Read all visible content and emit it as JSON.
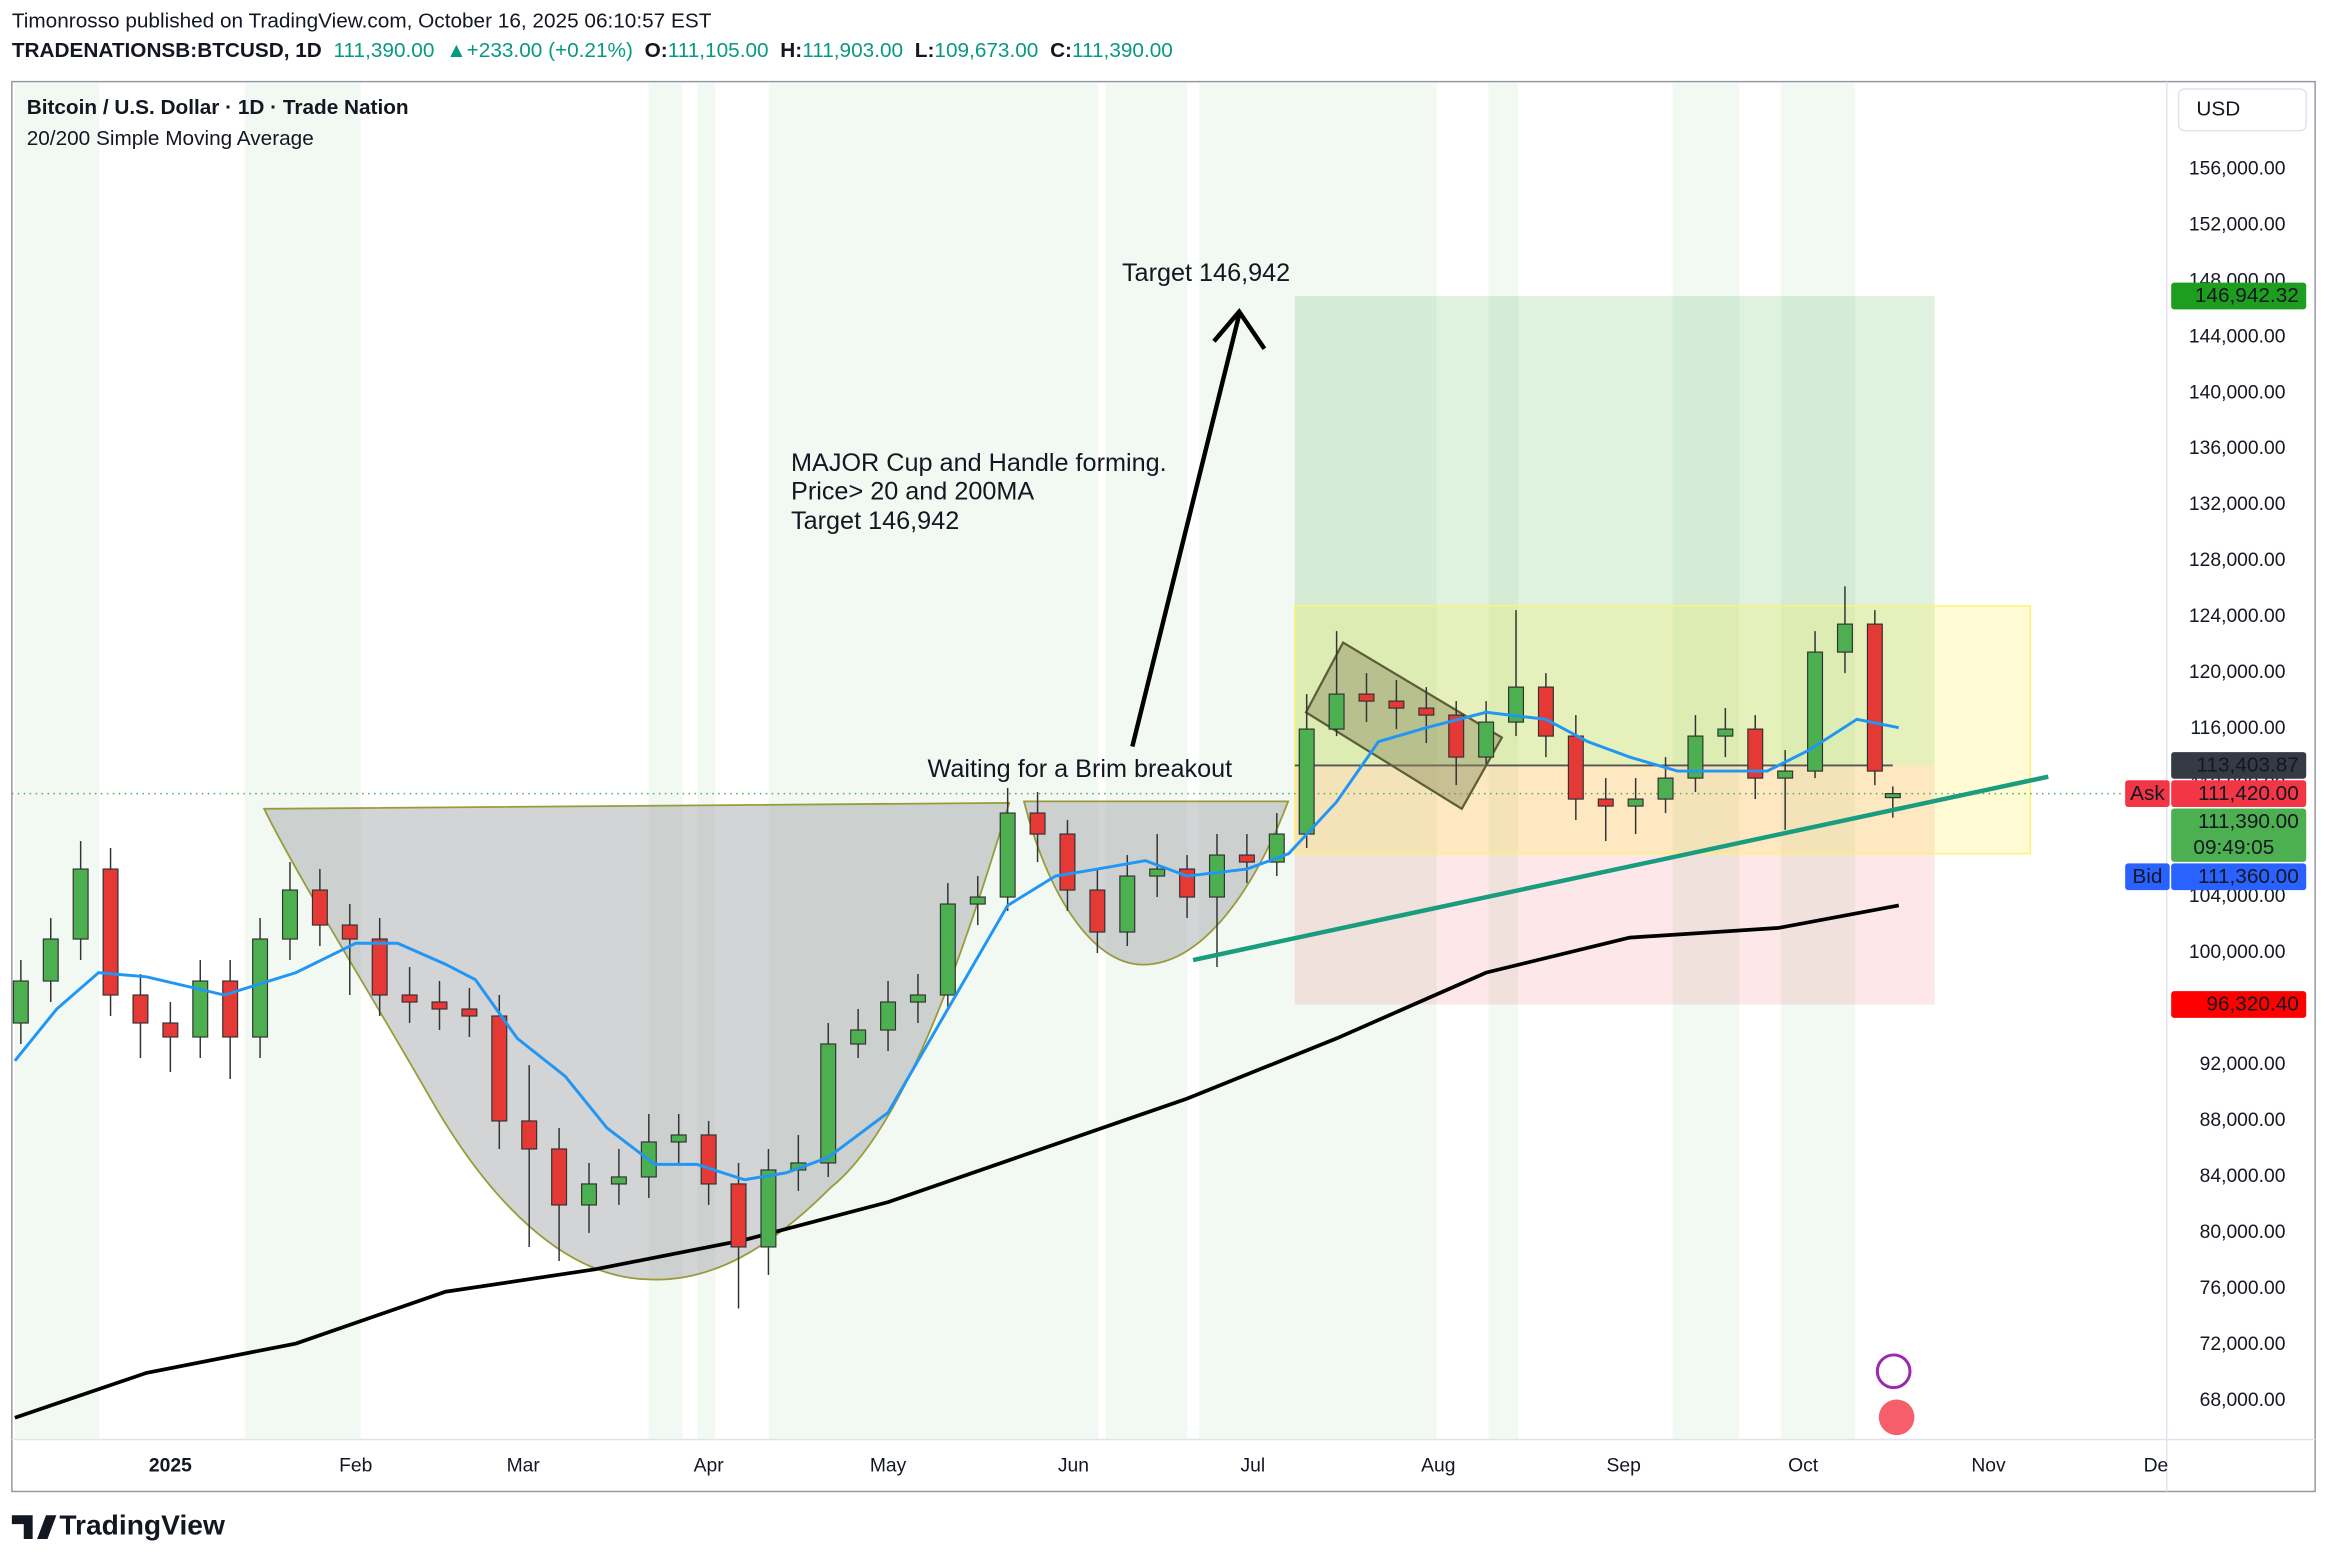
{
  "header": {
    "publisher": "Timonrosso published on TradingView.com, October 16, 2025 06:10:57 EST",
    "symbol": "TRADENATIONSB:BTCUSD, 1D",
    "last": "111,390.00",
    "change": "▲+233.00 (+0.21%)",
    "ohlc": [
      {
        "key": "O:",
        "value": "111,105.00"
      },
      {
        "key": "H:",
        "value": "111,903.00"
      },
      {
        "key": "L:",
        "value": "109,673.00"
      },
      {
        "key": "C:",
        "value": "111,390.00"
      }
    ]
  },
  "footer": {
    "brand": "TradingView"
  },
  "chart_data": {
    "type": "candlestick",
    "title": "Bitcoin / U.S. Dollar · 1D · Trade Nation",
    "subtitle": "20/200 Simple Moving Average",
    "currency": "USD",
    "up_color": "#4caf50",
    "down_color": "#e53935",
    "x": [
      -25,
      -20,
      -15,
      -10,
      -5,
      0,
      5,
      10,
      15,
      20,
      25,
      30,
      35,
      40,
      45,
      50,
      55,
      60,
      65,
      70,
      75,
      80,
      85,
      90,
      95,
      100,
      105,
      110,
      115,
      120,
      125,
      130,
      135,
      140,
      145,
      150,
      155,
      160,
      165,
      170,
      175,
      180,
      185,
      190,
      195,
      200,
      205,
      210,
      215,
      220,
      225,
      230,
      235,
      240,
      245,
      250,
      255,
      260,
      265,
      270,
      275,
      280,
      285,
      288
    ],
    "open": [
      95000,
      98000,
      101000,
      106000,
      97000,
      95000,
      94000,
      98000,
      94000,
      101000,
      104500,
      102000,
      101000,
      97000,
      96500,
      96000,
      95500,
      88000,
      86000,
      82000,
      83500,
      84000,
      86500,
      87000,
      83500,
      79000,
      84500,
      85000,
      93500,
      94500,
      96500,
      97000,
      103500,
      104000,
      110000,
      108500,
      104500,
      101500,
      105500,
      106000,
      104000,
      107000,
      106500,
      108500,
      116000,
      118500,
      118000,
      117500,
      117000,
      114000,
      116500,
      119000,
      115500,
      111000,
      110500,
      111000,
      112500,
      115500,
      116000,
      112500,
      113000,
      121500,
      123500,
      111105
    ],
    "high": [
      99500,
      102500,
      108000,
      107500,
      98500,
      96500,
      99500,
      99500,
      102500,
      106500,
      106000,
      103500,
      102500,
      99000,
      98000,
      97500,
      97000,
      92000,
      87500,
      85000,
      86000,
      88500,
      88500,
      88000,
      85000,
      86000,
      87000,
      95000,
      96000,
      98000,
      98500,
      105000,
      105500,
      111800,
      111500,
      109500,
      106000,
      107000,
      108500,
      107000,
      108500,
      108500,
      110000,
      118500,
      123000,
      120000,
      119500,
      119000,
      118000,
      118000,
      124500,
      120000,
      117000,
      112500,
      112500,
      114000,
      117000,
      117500,
      117000,
      114500,
      123000,
      126200,
      124500,
      111903
    ],
    "low": [
      93500,
      96500,
      99500,
      95500,
      92500,
      91500,
      92500,
      91000,
      92500,
      99500,
      100500,
      97000,
      95500,
      95000,
      94500,
      94000,
      86000,
      79000,
      78000,
      80000,
      82000,
      82500,
      85000,
      82000,
      74600,
      77000,
      83000,
      84000,
      92500,
      93000,
      95000,
      96000,
      102000,
      103000,
      106500,
      103000,
      100000,
      100500,
      104000,
      102500,
      99000,
      105000,
      105500,
      107500,
      115500,
      116500,
      116000,
      115000,
      112000,
      113500,
      115500,
      114000,
      109500,
      108000,
      108500,
      110000,
      111500,
      114000,
      111000,
      108800,
      112500,
      120000,
      112000,
      109673
    ],
    "close": [
      98000,
      101000,
      106000,
      97000,
      95000,
      94000,
      98000,
      94000,
      101000,
      104500,
      102000,
      101000,
      97000,
      96500,
      96000,
      95500,
      88000,
      86000,
      82000,
      83500,
      84000,
      86500,
      87000,
      83500,
      79000,
      84500,
      85000,
      93500,
      94500,
      96500,
      97000,
      103500,
      104000,
      110000,
      108500,
      104500,
      101500,
      105500,
      106000,
      104000,
      107000,
      106500,
      108500,
      116000,
      118500,
      118000,
      117500,
      117000,
      114000,
      116500,
      119000,
      115500,
      111000,
      110500,
      111000,
      112500,
      115500,
      116000,
      112500,
      113000,
      121500,
      123500,
      113000,
      111390
    ],
    "sma20": {
      "color": "#2196f3",
      "x": [
        -26,
        -19,
        -12,
        -4,
        9,
        21,
        31,
        38,
        46,
        51,
        58,
        66,
        73,
        81,
        88,
        96,
        103,
        110,
        120,
        130,
        140,
        148,
        155,
        163,
        170,
        180,
        187,
        195,
        202,
        210,
        220,
        230,
        237,
        244,
        252,
        267,
        274,
        282,
        289
      ],
      "values": [
        92300,
        96000,
        98600,
        98300,
        97000,
        98600,
        100700,
        100700,
        99200,
        98100,
        93900,
        91200,
        87500,
        84900,
        84900,
        83800,
        84300,
        85400,
        88600,
        96000,
        103400,
        105500,
        106000,
        106600,
        105500,
        106000,
        107100,
        110800,
        115100,
        116100,
        117200,
        116700,
        115100,
        114000,
        113000,
        113000,
        114500,
        116700,
        116100
      ]
    },
    "sma200": {
      "color": "#000000",
      "x": [
        -26,
        -4,
        21,
        46,
        71,
        96,
        120,
        145,
        170,
        195,
        220,
        244,
        269,
        289
      ],
      "values": [
        66800,
        70000,
        72100,
        75800,
        77400,
        79500,
        82200,
        85900,
        89600,
        93900,
        98600,
        101100,
        101800,
        103400
      ]
    },
    "position": {
      "x": [
        188,
        295
      ],
      "target": 146942.32,
      "entry": 113403.87,
      "stop": 96320.4
    },
    "range_box": {
      "x": [
        188,
        311
      ],
      "values": [
        107100,
        124800
      ]
    },
    "trendline": {
      "color": "#1a9c7f",
      "x": [
        171,
        314
      ],
      "values": [
        99500,
        112600
      ]
    },
    "price_labels": [
      {
        "value": 146942.32,
        "label": "146,942.32",
        "color": "#1e9e1e"
      },
      {
        "value": 113403.87,
        "label": "113,403.87",
        "color": "#363a45"
      },
      {
        "value": 111420.0,
        "label": "111,420.00",
        "tag": "Ask",
        "color": "#f23645"
      },
      {
        "value": 111390.0,
        "label": "111,390.00",
        "sub": "09:49:05",
        "color": "#4caf50"
      },
      {
        "value": 111360.0,
        "label": "111,360.00",
        "tag": "Bid",
        "color": "#2962ff"
      },
      {
        "value": 96320.4,
        "label": "96,320.40",
        "color": "#ff0000"
      }
    ],
    "annotations": [
      "Target 146,942",
      "MAJOR Cup and Handle forming.",
      "Price> 20 and 200MA",
      "Target 146,942",
      "Waiting for a Brim breakout"
    ],
    "xlim": [
      -26.5,
      333.8
    ],
    "xticks": [
      {
        "value": 0,
        "label": "2025"
      },
      {
        "value": 31,
        "label": "Feb"
      },
      {
        "value": 59,
        "label": "Mar"
      },
      {
        "value": 90,
        "label": "Apr"
      },
      {
        "value": 120,
        "label": "May"
      },
      {
        "value": 151,
        "label": "Jun"
      },
      {
        "value": 181,
        "label": "Jul"
      },
      {
        "value": 212,
        "label": "Aug"
      },
      {
        "value": 243,
        "label": "Sep"
      },
      {
        "value": 273,
        "label": "Oct"
      },
      {
        "value": 304,
        "label": "Nov"
      },
      {
        "value": 332,
        "label": "De"
      }
    ],
    "ylim": [
      65240,
      162260
    ],
    "yticks": [
      {
        "value": 68000,
        "label": "68,000.00"
      },
      {
        "value": 72000,
        "label": "72,000.00"
      },
      {
        "value": 76000,
        "label": "76,000.00"
      },
      {
        "value": 80000,
        "label": "80,000.00"
      },
      {
        "value": 84000,
        "label": "84,000.00"
      },
      {
        "value": 88000,
        "label": "88,000.00"
      },
      {
        "value": 92000,
        "label": "92,000.00"
      },
      {
        "value": 96000,
        "label": "96,000.00"
      },
      {
        "value": 100000,
        "label": "100,000.00"
      },
      {
        "value": 104000,
        "label": "104,000.00"
      },
      {
        "value": 108000,
        "label": "108,000.00"
      },
      {
        "value": 112000,
        "label": "112,000.00"
      },
      {
        "value": 116000,
        "label": "116,000.00"
      },
      {
        "value": 120000,
        "label": "120,000.00"
      },
      {
        "value": 124000,
        "label": "124,000.00"
      },
      {
        "value": 128000,
        "label": "128,000.00"
      },
      {
        "value": 132000,
        "label": "132,000.00"
      },
      {
        "value": 136000,
        "label": "136,000.00"
      },
      {
        "value": 140000,
        "label": "140,000.00"
      },
      {
        "value": 144000,
        "label": "144,000.00"
      },
      {
        "value": 148000,
        "label": "148,000.00"
      },
      {
        "value": 152000,
        "label": "152,000.00"
      },
      {
        "value": 156000,
        "label": "156,000.00"
      }
    ],
    "grid": false
  }
}
